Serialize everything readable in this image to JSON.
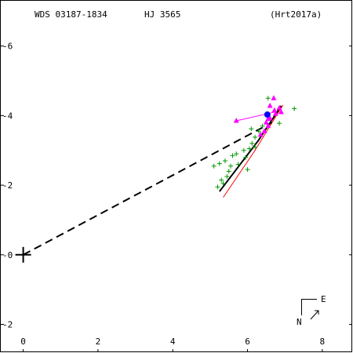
{
  "header": {
    "wds": "WDS 03187-1834",
    "name": "HJ 3565",
    "reference": "(Hrt2017a)"
  },
  "compass": {
    "east_label": "E",
    "north_label": "N"
  },
  "chart_data": {
    "type": "scatter",
    "title": "",
    "xlabel": "",
    "ylabel": "",
    "xlim": [
      -0.6,
      8.8
    ],
    "ylim": [
      -2.8,
      7.3
    ],
    "x_ticks": [
      0,
      2,
      4,
      6,
      8
    ],
    "y_ticks": [
      -2,
      0,
      2,
      4,
      6
    ],
    "grid": false,
    "colors": {
      "observations": "#009900",
      "speckle": "#ff00ff",
      "highlight": "#0000ff",
      "orbit_old": "#ff0000",
      "orbit_new": "#000000",
      "connector": "#000000"
    },
    "primary": {
      "x": 0,
      "y": 0
    },
    "connector_line": {
      "from": [
        0,
        0
      ],
      "to": [
        6.65,
        3.8
      ]
    },
    "orbit_segments": [
      {
        "color": "#000000",
        "points": [
          [
            5.25,
            1.82
          ],
          [
            6.3,
            3.3
          ],
          [
            6.7,
            3.95
          ],
          [
            6.9,
            4.28
          ]
        ]
      },
      {
        "color": "#ff0000",
        "points": [
          [
            5.35,
            1.65
          ],
          [
            6.2,
            3.0
          ],
          [
            6.8,
            4.05
          ],
          [
            6.95,
            4.3
          ]
        ]
      }
    ],
    "observations": [
      [
        6.55,
        4.5
      ],
      [
        7.25,
        4.2
      ],
      [
        6.85,
        3.78
      ],
      [
        6.1,
        3.62
      ],
      [
        6.3,
        3.55
      ],
      [
        6.2,
        3.38
      ],
      [
        6.12,
        3.2
      ],
      [
        6.2,
        3.1
      ],
      [
        6.05,
        3.05
      ],
      [
        5.9,
        3.0
      ],
      [
        5.7,
        2.9
      ],
      [
        5.95,
        2.8
      ],
      [
        5.6,
        2.85
      ],
      [
        5.4,
        2.7
      ],
      [
        5.1,
        2.55
      ],
      [
        5.25,
        2.62
      ],
      [
        5.55,
        2.55
      ],
      [
        5.75,
        2.6
      ],
      [
        6.0,
        2.45
      ],
      [
        5.5,
        2.4
      ],
      [
        5.3,
        2.15
      ],
      [
        5.45,
        2.25
      ],
      [
        5.35,
        2.05
      ],
      [
        5.2,
        1.95
      ],
      [
        6.4,
        3.7
      ]
    ],
    "speckle_points": [
      [
        6.7,
        4.5
      ],
      [
        6.6,
        4.28
      ],
      [
        6.85,
        4.22
      ],
      [
        6.75,
        4.05
      ],
      [
        6.9,
        4.1
      ],
      [
        6.6,
        3.92
      ],
      [
        6.5,
        3.8
      ],
      [
        6.55,
        3.7
      ],
      [
        6.45,
        3.55
      ],
      [
        6.35,
        3.45
      ],
      [
        6.55,
        3.9
      ],
      [
        6.72,
        4.15
      ]
    ],
    "speckle_outlier": {
      "from": [
        5.7,
        3.85
      ],
      "to": [
        6.72,
        4.1
      ]
    },
    "highlight_point": [
      6.53,
      4.03
    ]
  }
}
